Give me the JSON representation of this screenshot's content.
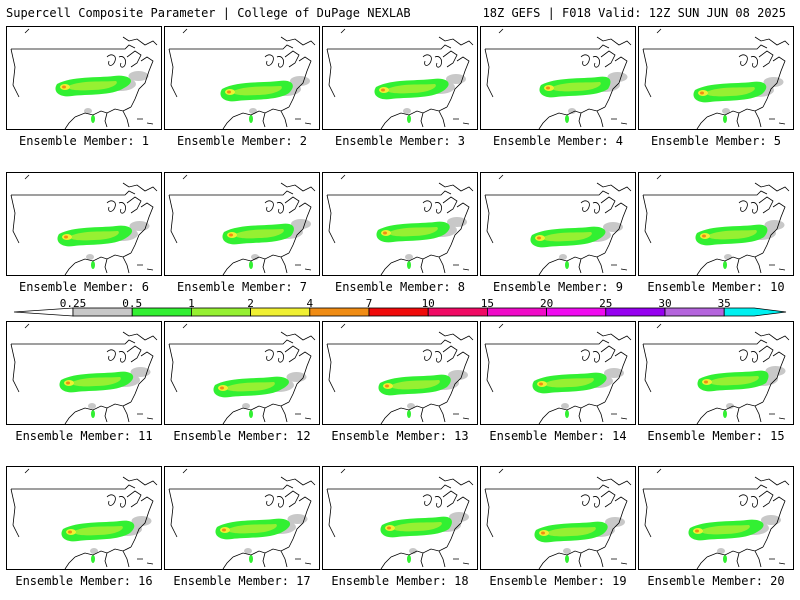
{
  "header": {
    "title_left": "Supercell Composite Parameter | College of DuPage NEXLAB",
    "title_right": "18Z GEFS | F018 Valid: 12Z SUN JUN 08 2025"
  },
  "panels": [
    {
      "label": "Ensemble Member: 1"
    },
    {
      "label": "Ensemble Member: 2"
    },
    {
      "label": "Ensemble Member: 3"
    },
    {
      "label": "Ensemble Member: 4"
    },
    {
      "label": "Ensemble Member: 5"
    },
    {
      "label": "Ensemble Member: 6"
    },
    {
      "label": "Ensemble Member: 7"
    },
    {
      "label": "Ensemble Member: 8"
    },
    {
      "label": "Ensemble Member: 9"
    },
    {
      "label": "Ensemble Member: 10"
    },
    {
      "label": "Ensemble Member: 11"
    },
    {
      "label": "Ensemble Member: 12"
    },
    {
      "label": "Ensemble Member: 13"
    },
    {
      "label": "Ensemble Member: 14"
    },
    {
      "label": "Ensemble Member: 15"
    },
    {
      "label": "Ensemble Member: 16"
    },
    {
      "label": "Ensemble Member: 17"
    },
    {
      "label": "Ensemble Member: 18"
    },
    {
      "label": "Ensemble Member: 19"
    },
    {
      "label": "Ensemble Member: 20"
    }
  ],
  "colorbar": {
    "ticks": [
      "0.25",
      "0.5",
      "1",
      "2",
      "4",
      "7",
      "10",
      "15",
      "20",
      "25",
      "30",
      "35"
    ],
    "colors": [
      "#c8c8c8",
      "#32f032",
      "#96f032",
      "#f0f032",
      "#f08c14",
      "#f00a0a",
      "#f00a64",
      "#f00ac8",
      "#f00af0",
      "#9600f0",
      "#b464dc",
      "#00f0f0"
    ]
  }
}
